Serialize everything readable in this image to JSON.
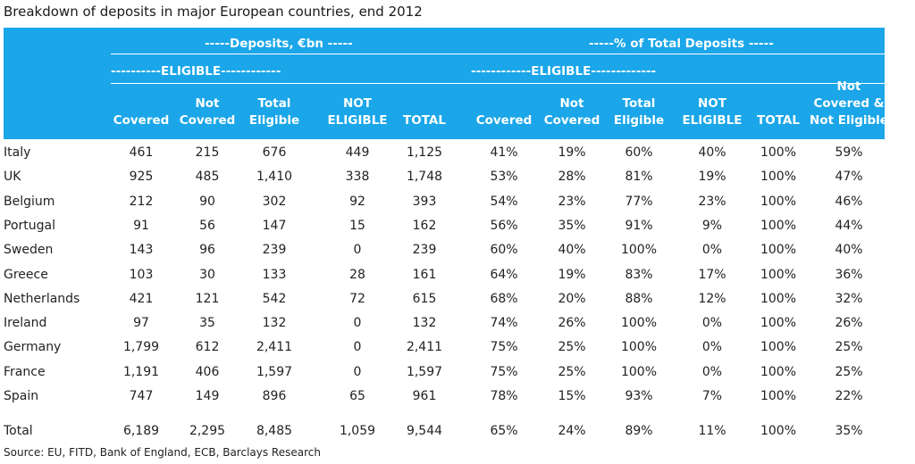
{
  "chart_data": {
    "type": "table",
    "title": "Breakdown of deposits in major European countries, end 2012",
    "group_headers": {
      "deposits": "-----Deposits, €bn -----",
      "percent": "-----% of Total Deposits -----",
      "eligible_deposits": "----------ELIGIBLE------------",
      "eligible_percent": "------------ELIGIBLE-------------"
    },
    "columns": [
      [
        "Covered"
      ],
      [
        "Not",
        "Covered"
      ],
      [
        "Total",
        "Eligible"
      ],
      [
        "NOT",
        "ELIGIBLE"
      ],
      [
        "TOTAL"
      ],
      [
        "Covered"
      ],
      [
        "Not",
        "Covered"
      ],
      [
        "Total",
        "Eligible"
      ],
      [
        "NOT",
        "ELIGIBLE"
      ],
      [
        "TOTAL"
      ],
      [
        "Not",
        "Covered &",
        "Not Eligible"
      ]
    ],
    "rows": [
      {
        "country": "Italy",
        "values": [
          "461",
          "215",
          "676",
          "449",
          "1,125",
          "41%",
          "19%",
          "60%",
          "40%",
          "100%",
          "59%"
        ]
      },
      {
        "country": "UK",
        "values": [
          "925",
          "485",
          "1,410",
          "338",
          "1,748",
          "53%",
          "28%",
          "81%",
          "19%",
          "100%",
          "47%"
        ]
      },
      {
        "country": "Belgium",
        "values": [
          "212",
          "90",
          "302",
          "92",
          "393",
          "54%",
          "23%",
          "77%",
          "23%",
          "100%",
          "46%"
        ]
      },
      {
        "country": "Portugal",
        "values": [
          "91",
          "56",
          "147",
          "15",
          "162",
          "56%",
          "35%",
          "91%",
          "9%",
          "100%",
          "44%"
        ]
      },
      {
        "country": "Sweden",
        "values": [
          "143",
          "96",
          "239",
          "0",
          "239",
          "60%",
          "40%",
          "100%",
          "0%",
          "100%",
          "40%"
        ]
      },
      {
        "country": "Greece",
        "values": [
          "103",
          "30",
          "133",
          "28",
          "161",
          "64%",
          "19%",
          "83%",
          "17%",
          "100%",
          "36%"
        ]
      },
      {
        "country": "Netherlands",
        "values": [
          "421",
          "121",
          "542",
          "72",
          "615",
          "68%",
          "20%",
          "88%",
          "12%",
          "100%",
          "32%"
        ]
      },
      {
        "country": "Ireland",
        "values": [
          "97",
          "35",
          "132",
          "0",
          "132",
          "74%",
          "26%",
          "100%",
          "0%",
          "100%",
          "26%"
        ]
      },
      {
        "country": "Germany",
        "values": [
          "1,799",
          "612",
          "2,411",
          "0",
          "2,411",
          "75%",
          "25%",
          "100%",
          "0%",
          "100%",
          "25%"
        ]
      },
      {
        "country": "France",
        "values": [
          "1,191",
          "406",
          "1,597",
          "0",
          "1,597",
          "75%",
          "25%",
          "100%",
          "0%",
          "100%",
          "25%"
        ]
      },
      {
        "country": "Spain",
        "values": [
          "747",
          "149",
          "896",
          "65",
          "961",
          "78%",
          "15%",
          "93%",
          "7%",
          "100%",
          "22%"
        ]
      }
    ],
    "total_row": {
      "country": "Total",
      "values": [
        "6,189",
        "2,295",
        "8,485",
        "1,059",
        "9,544",
        "65%",
        "24%",
        "89%",
        "11%",
        "100%",
        "35%"
      ]
    },
    "source": "Source: EU, FITD, Bank of England, ECB, Barclays Research",
    "header_color": "#1aa6e8"
  }
}
